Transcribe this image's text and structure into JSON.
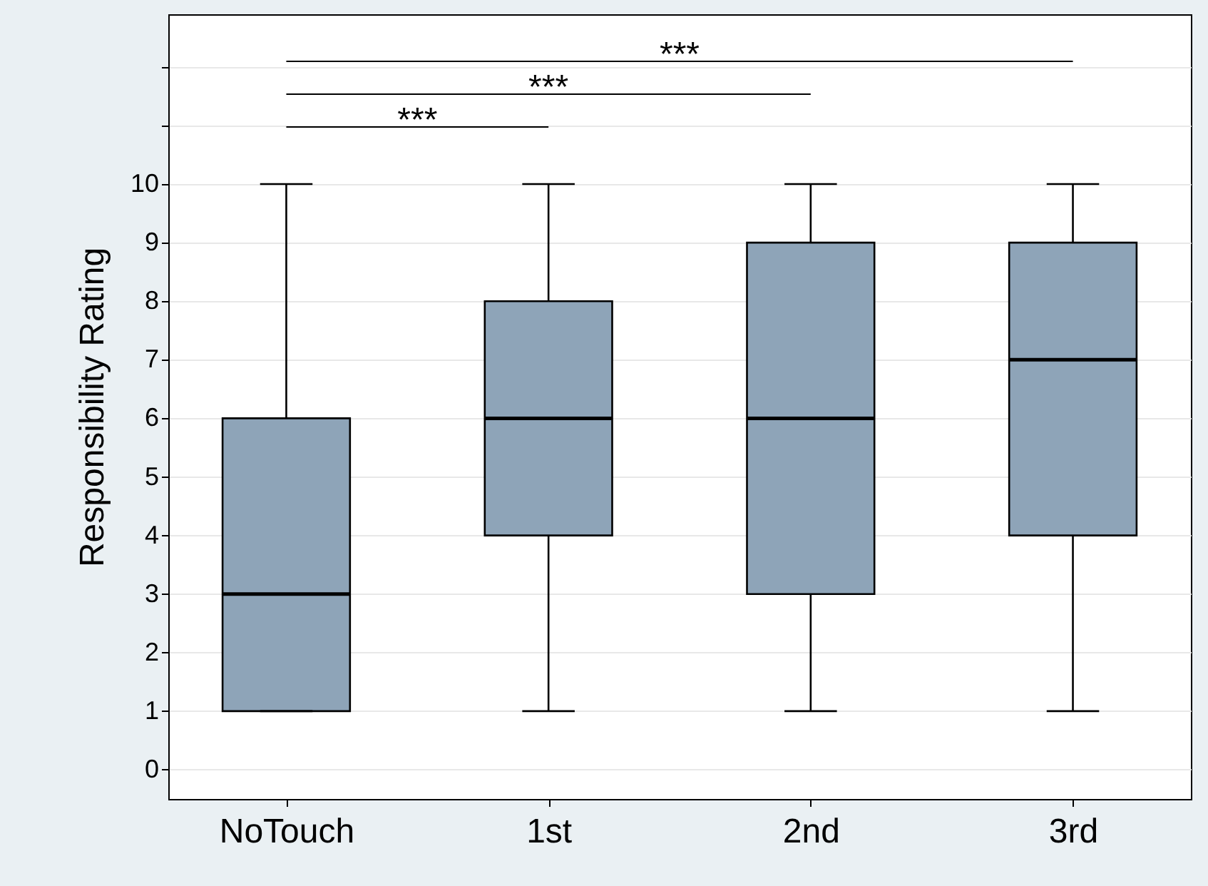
{
  "chart_data": {
    "type": "box",
    "ylabel": "Responsibility Rating",
    "categories": [
      "NoTouch",
      "1st",
      "2nd",
      "3rd"
    ],
    "color": "#8ea4b8",
    "boxes": [
      {
        "low": 1,
        "q1": 1,
        "median": 3,
        "q3": 6,
        "high": 10
      },
      {
        "low": 1,
        "q1": 4,
        "median": 6,
        "q3": 8,
        "high": 10
      },
      {
        "low": 1,
        "q1": 3,
        "median": 6,
        "q3": 9,
        "high": 10
      },
      {
        "low": 1,
        "q1": 4,
        "median": 7,
        "q3": 9,
        "high": 10
      }
    ],
    "ylim": [
      -0.5,
      12.9
    ],
    "yticks": [
      0,
      1,
      2,
      3,
      4,
      5,
      6,
      7,
      8,
      9,
      10,
      {
        "value": 11,
        "label": null
      },
      {
        "value": 12,
        "label": null
      }
    ],
    "grid": "y",
    "annotations": [
      "***",
      "***",
      "***"
    ]
  }
}
